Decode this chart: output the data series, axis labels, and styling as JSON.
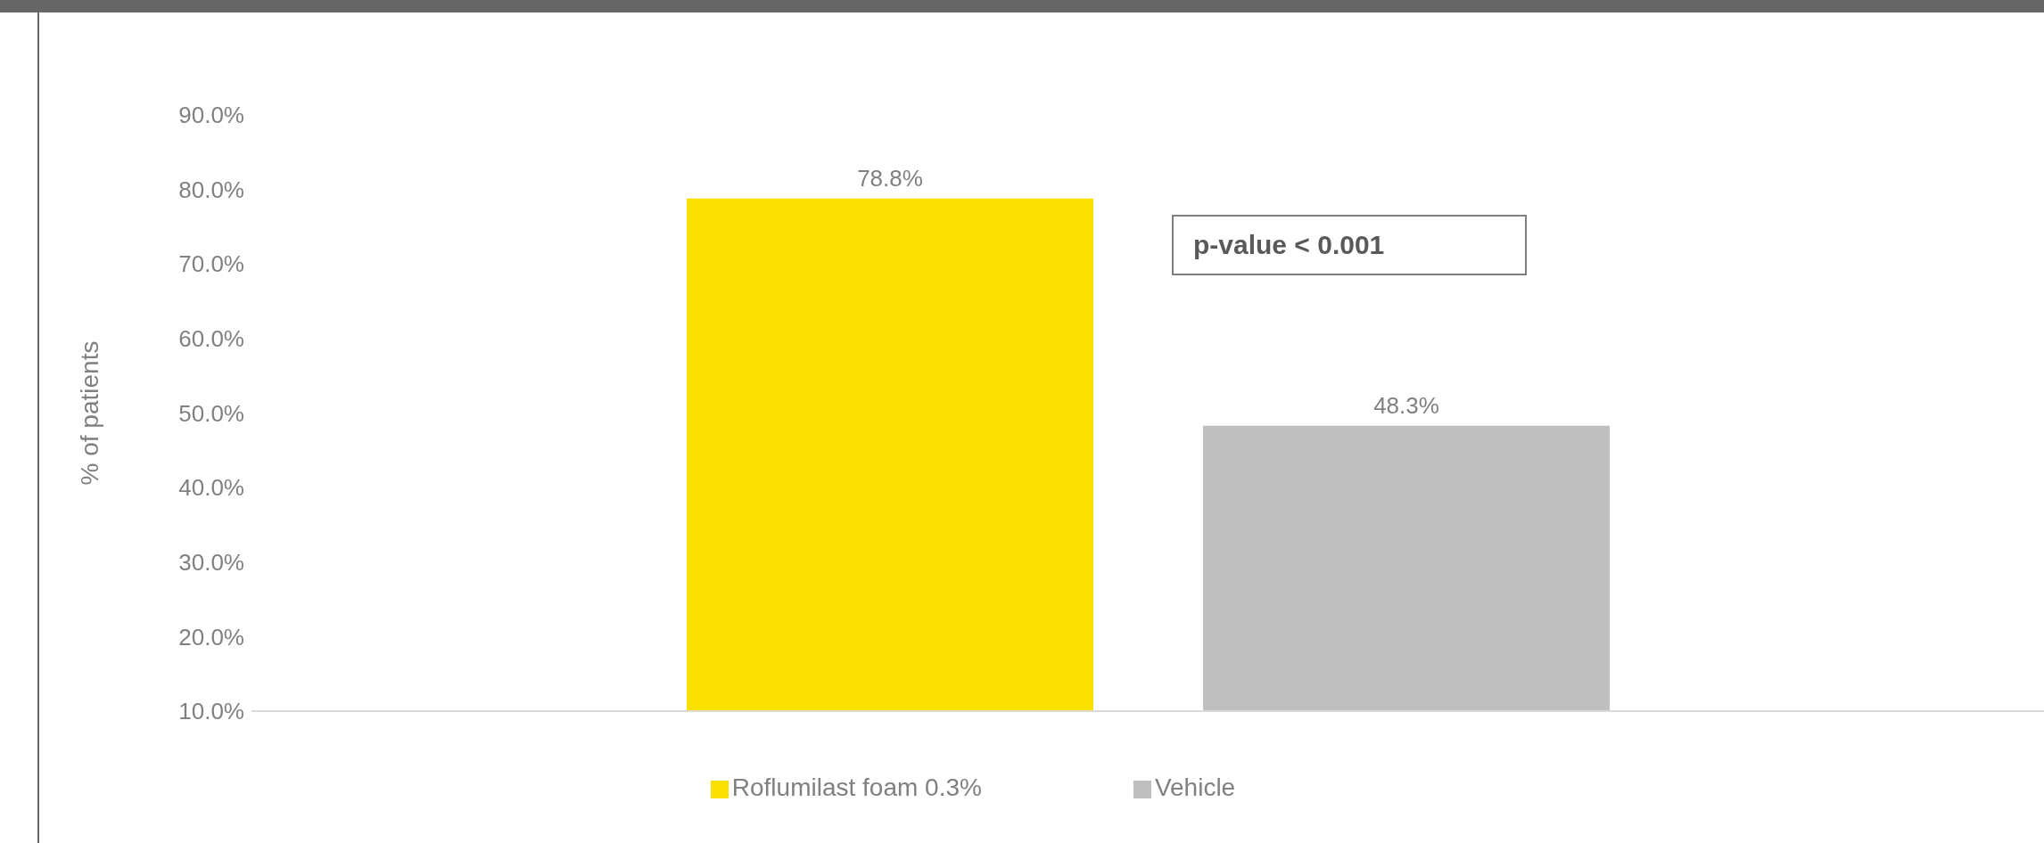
{
  "chart_data": {
    "type": "bar",
    "ylabel": "% of patients",
    "categories": [
      null
    ],
    "series": [
      {
        "name": "Roflumilast foam 0.3%",
        "color": "#fae000",
        "values": [
          78.8
        ],
        "value_labels": [
          "78.8%"
        ]
      },
      {
        "name": "Vehicle",
        "color": "#bfbfbf",
        "values": [
          48.3
        ],
        "value_labels": [
          "48.3%"
        ]
      }
    ],
    "ylim": [
      10,
      90
    ],
    "yticks": [
      {
        "value": 10,
        "label": "10.0%"
      },
      {
        "value": 20,
        "label": "20.0%"
      },
      {
        "value": 30,
        "label": "30.0%"
      },
      {
        "value": 40,
        "label": "40.0%"
      },
      {
        "value": 50,
        "label": "50.0%"
      },
      {
        "value": 60,
        "label": "60.0%"
      },
      {
        "value": 70,
        "label": "70.0%"
      },
      {
        "value": 80,
        "label": "80.0%"
      },
      {
        "value": 90,
        "label": "90.0%"
      }
    ],
    "grid": false,
    "legend": "bottom",
    "annotations": [
      "p-value < 0.001"
    ]
  }
}
